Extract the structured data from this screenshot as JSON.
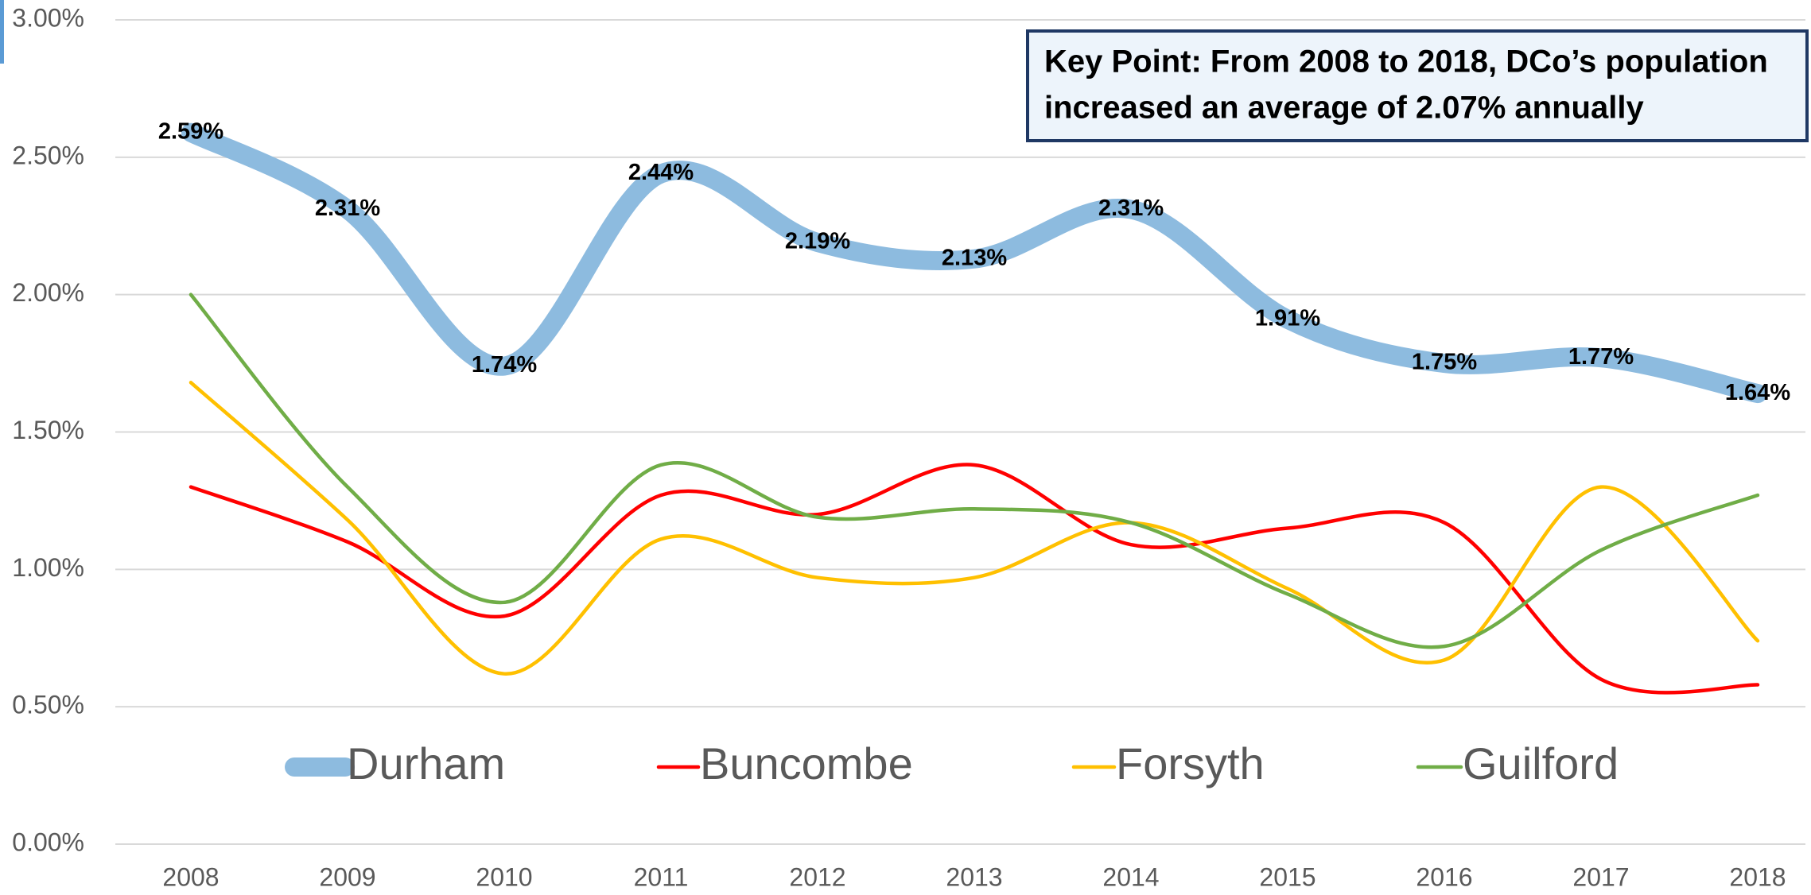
{
  "chart_data": {
    "type": "line",
    "annotation": [
      "Key Point: From 2008 to 2018, DCo’s population",
      "increased an average of 2.07% annually"
    ],
    "categories": [
      "2008",
      "2009",
      "2010",
      "2011",
      "2012",
      "2013",
      "2014",
      "2015",
      "2016",
      "2017",
      "2018"
    ],
    "series": [
      {
        "name": "Durham",
        "color": "#8dbbdf",
        "values": [
          2.59,
          2.31,
          1.74,
          2.44,
          2.19,
          2.13,
          2.31,
          1.91,
          1.75,
          1.77,
          1.64
        ],
        "value_labels": [
          "2.59%",
          "2.31%",
          "1.74%",
          "2.44%",
          "2.19%",
          "2.13%",
          "2.31%",
          "1.91%",
          "1.75%",
          "1.77%",
          "1.64%"
        ]
      },
      {
        "name": "Buncombe",
        "color": "#ff0000",
        "values": [
          1.3,
          1.1,
          0.83,
          1.27,
          1.2,
          1.38,
          1.09,
          1.15,
          1.17,
          0.6,
          0.58
        ]
      },
      {
        "name": "Forsyth",
        "color": "#ffc000",
        "values": [
          1.68,
          1.18,
          0.62,
          1.11,
          0.97,
          0.97,
          1.17,
          0.93,
          0.67,
          1.3,
          0.74
        ]
      },
      {
        "name": "Guilford",
        "color": "#70ad47",
        "values": [
          2.0,
          1.3,
          0.88,
          1.38,
          1.19,
          1.22,
          1.17,
          0.91,
          0.72,
          1.07,
          1.27
        ]
      }
    ],
    "ylim": [
      0,
      3
    ],
    "yticks": [
      {
        "value": 0,
        "label": "0.00%"
      },
      {
        "value": 0.5,
        "label": "0.50%"
      },
      {
        "value": 1,
        "label": "1.00%"
      },
      {
        "value": 1.5,
        "label": "1.50%"
      },
      {
        "value": 2,
        "label": "2.00%"
      },
      {
        "value": 2.5,
        "label": "2.50%"
      },
      {
        "value": 3,
        "label": "3.00%"
      }
    ],
    "grid": true,
    "legend": "bottom",
    "smooth": true
  }
}
